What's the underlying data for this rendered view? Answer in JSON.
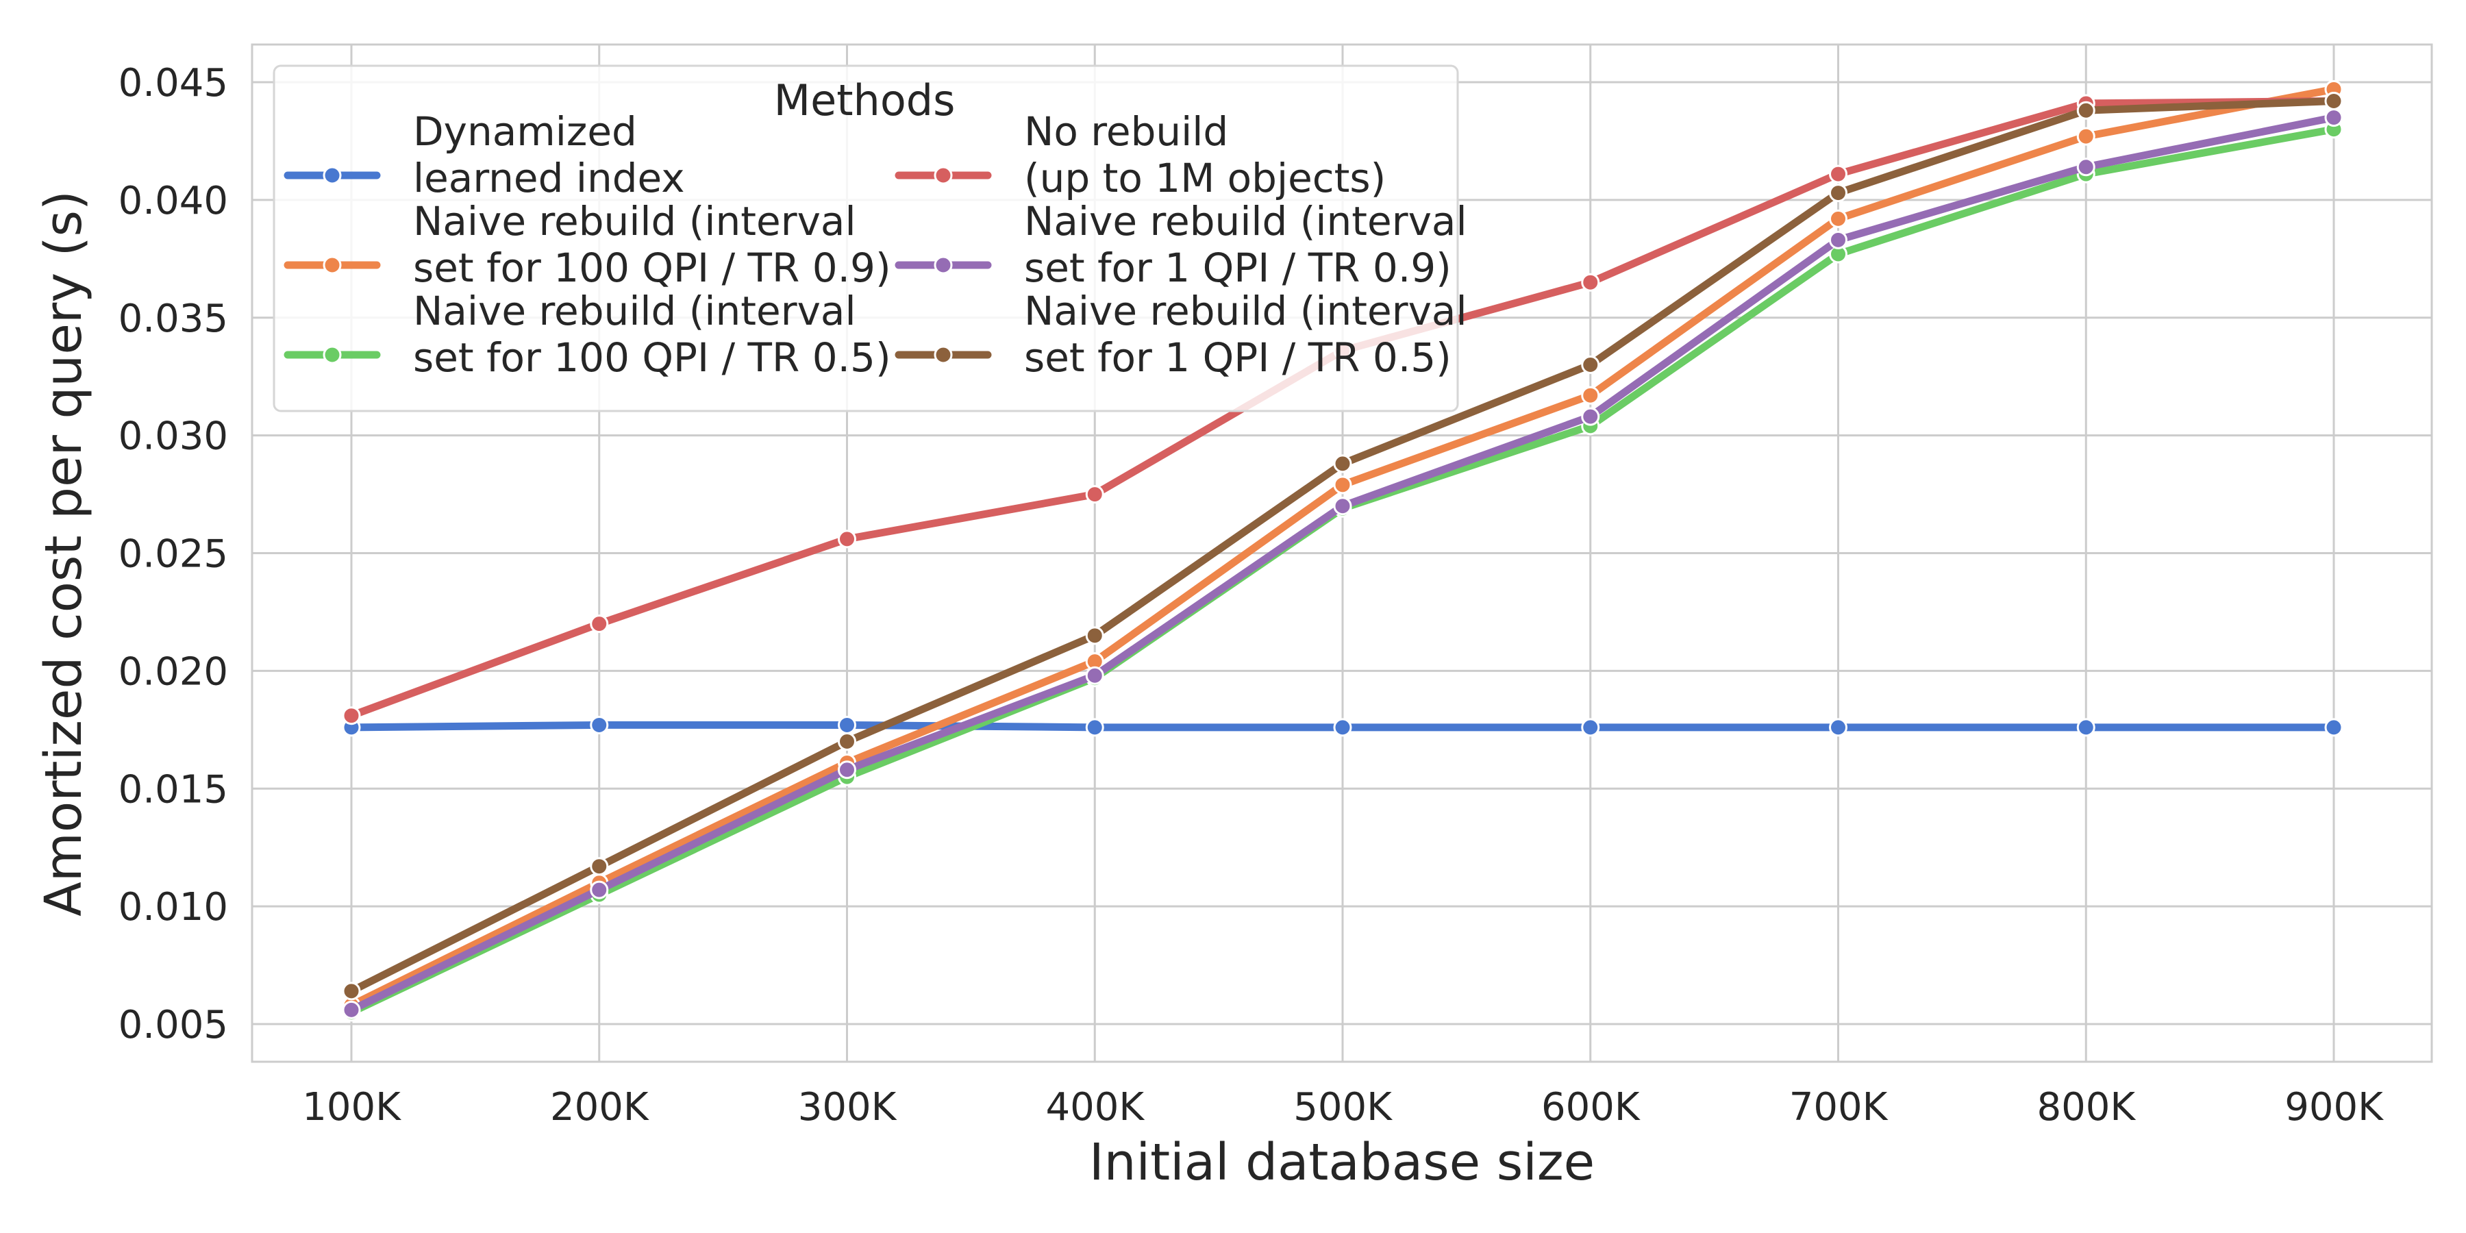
{
  "chart_data": {
    "type": "line",
    "title": "",
    "xlabel": "Initial database size",
    "ylabel": "Amortized cost per query (s)",
    "categories": [
      "100K",
      "200K",
      "300K",
      "400K",
      "500K",
      "600K",
      "700K",
      "800K",
      "900K"
    ],
    "yticks": [
      "0.005",
      "0.010",
      "0.015",
      "0.020",
      "0.025",
      "0.030",
      "0.035",
      "0.040",
      "0.045"
    ],
    "ylim": [
      0.0034,
      0.0466
    ],
    "grid": true,
    "legend": {
      "title": "Methods",
      "placement": "top-left",
      "columns": 2
    },
    "series": [
      {
        "name": "Dynamized learned index",
        "label_lines": [
          "Dynamized",
          "learned index"
        ],
        "color": "#4878d0",
        "values": [
          0.0176,
          0.0177,
          0.0177,
          0.0176,
          0.0176,
          0.0176,
          0.0176,
          0.0176,
          0.0176
        ]
      },
      {
        "name": "Naive rebuild (interval set for 100 QPI / TR 0.9)",
        "label_lines": [
          "Naive rebuild (interval",
          "set for 100 QPI / TR 0.9)"
        ],
        "color": "#ee854a",
        "values": [
          0.0058,
          0.011,
          0.0161,
          0.0204,
          0.0279,
          0.0317,
          0.0392,
          0.0427,
          0.0447
        ]
      },
      {
        "name": "Naive rebuild (interval set for 100 QPI / TR 0.5)",
        "label_lines": [
          "Naive rebuild (interval",
          "set for 100 QPI / TR 0.5)"
        ],
        "color": "#6acc64",
        "values": [
          0.0055,
          0.0105,
          0.0155,
          0.0197,
          0.0269,
          0.0304,
          0.0377,
          0.0411,
          0.043
        ]
      },
      {
        "name": "No rebuild (up to 1M objects)",
        "label_lines": [
          "No rebuild",
          "(up to 1M objects)"
        ],
        "color": "#d65f5f",
        "values": [
          0.0181,
          0.022,
          0.0256,
          0.0275,
          0.0336,
          0.0365,
          0.0411,
          0.0441,
          0.0442
        ]
      },
      {
        "name": "Naive rebuild (interval set for 1 QPI / TR 0.9)",
        "label_lines": [
          "Naive rebuild (interval",
          "set for 1 QPI / TR 0.9)"
        ],
        "color": "#956cb4",
        "values": [
          0.0056,
          0.0107,
          0.0158,
          0.0198,
          0.027,
          0.0308,
          0.0383,
          0.0414,
          0.0435
        ]
      },
      {
        "name": "Naive rebuild (interval set for 1 QPI / TR 0.5)",
        "label_lines": [
          "Naive rebuild (interval",
          "set for 1 QPI / TR 0.5)"
        ],
        "color": "#8c613c",
        "values": [
          0.0064,
          0.0117,
          0.017,
          0.0215,
          0.0288,
          0.033,
          0.0403,
          0.0438,
          0.0442
        ]
      }
    ]
  }
}
